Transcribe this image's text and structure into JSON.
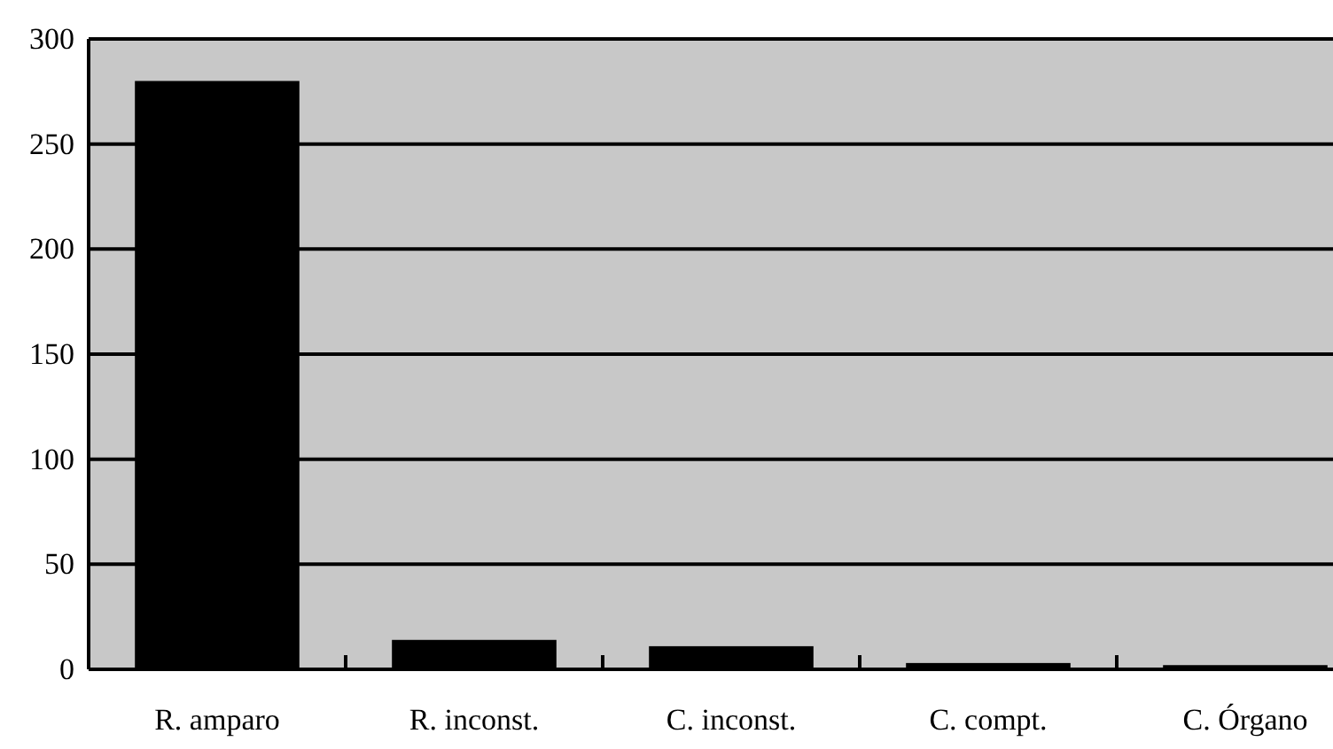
{
  "chart_data": {
    "type": "bar",
    "categories": [
      "R. amparo",
      "R. inconst.",
      "C. inconst.",
      "C. compt.",
      "C. Órgano"
    ],
    "values": [
      280,
      14,
      11,
      3,
      2
    ],
    "color": "#000000",
    "ylim": [
      0,
      300
    ],
    "yticks": [
      0,
      50,
      100,
      150,
      200,
      250,
      300
    ],
    "grid": "y"
  }
}
